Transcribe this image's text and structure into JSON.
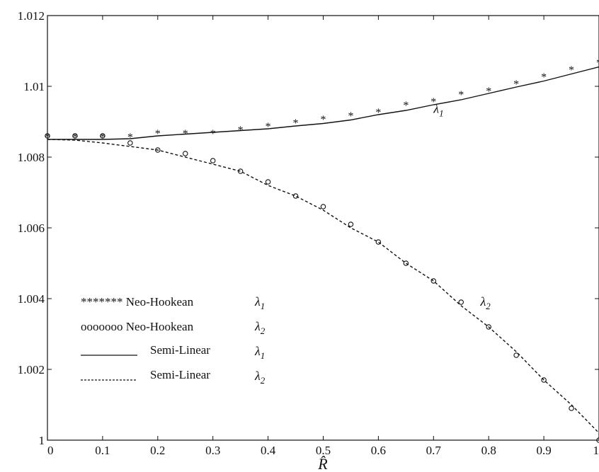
{
  "chart_data": {
    "type": "line",
    "xlabel": "R̂",
    "ylabel": "",
    "xlim": [
      0,
      1
    ],
    "ylim": [
      1,
      1.012
    ],
    "x_ticks": [
      "0",
      "0.1",
      "0.2",
      "0.3",
      "0.4",
      "0.5",
      "0.6",
      "0.7",
      "0.8",
      "0.9",
      "1"
    ],
    "y_ticks": [
      "1",
      "1.002",
      "1.004",
      "1.006",
      "1.008",
      "1.01",
      "1.012"
    ],
    "grid": false,
    "legend_position": "bottom-left",
    "x": [
      0,
      0.05,
      0.1,
      0.15,
      0.2,
      0.25,
      0.3,
      0.35,
      0.4,
      0.45,
      0.5,
      0.55,
      0.6,
      0.65,
      0.7,
      0.75,
      0.8,
      0.85,
      0.9,
      0.95,
      1
    ],
    "series": [
      {
        "legend_marker": "*******",
        "legend_label": "Neo-Hookean",
        "legend_symbol": "λ1",
        "style": "star",
        "values": [
          1.0086,
          1.0086,
          1.0086,
          1.0086,
          1.0087,
          1.0087,
          1.0087,
          1.0088,
          1.0089,
          1.009,
          1.0091,
          1.0092,
          1.0093,
          1.0095,
          1.0096,
          1.0098,
          1.0099,
          1.0101,
          1.0103,
          1.0105,
          1.0107
        ]
      },
      {
        "legend_marker": "ooooooo",
        "legend_label": "Neo-Hookean",
        "legend_symbol": "λ2",
        "style": "circle",
        "values": [
          1.0086,
          1.0086,
          1.0086,
          1.0084,
          1.0082,
          1.0081,
          1.0079,
          1.0076,
          1.0073,
          1.0069,
          1.0066,
          1.0061,
          1.0056,
          1.005,
          1.0045,
          1.0039,
          1.0032,
          1.0024,
          1.0017,
          1.0009,
          1.0
        ]
      },
      {
        "legend_marker": "",
        "legend_label": "Semi-Linear",
        "legend_symbol": "λ1",
        "style": "solid",
        "values": [
          1.0085,
          1.0085,
          1.0085,
          1.00852,
          1.0086,
          1.00865,
          1.0087,
          1.00875,
          1.0088,
          1.00888,
          1.00895,
          1.00905,
          1.0092,
          1.00932,
          1.00948,
          1.00962,
          1.0098,
          1.00998,
          1.01015,
          1.01035,
          1.01055
        ]
      },
      {
        "legend_marker": "",
        "legend_label": "Semi-Linear",
        "legend_symbol": "λ2",
        "style": "dashed",
        "values": [
          1.0085,
          1.00848,
          1.0084,
          1.0083,
          1.0082,
          1.008,
          1.0078,
          1.0076,
          1.0072,
          1.0069,
          1.0065,
          1.006,
          1.0056,
          1.005,
          1.0045,
          1.0038,
          1.0032,
          1.0025,
          1.0017,
          1.001,
          1.0002
        ]
      }
    ],
    "annotations": [
      {
        "text": "λ1",
        "x": 0.7,
        "y": 1.00925
      },
      {
        "text": "λ2",
        "x": 0.785,
        "y": 1.0038
      }
    ]
  }
}
